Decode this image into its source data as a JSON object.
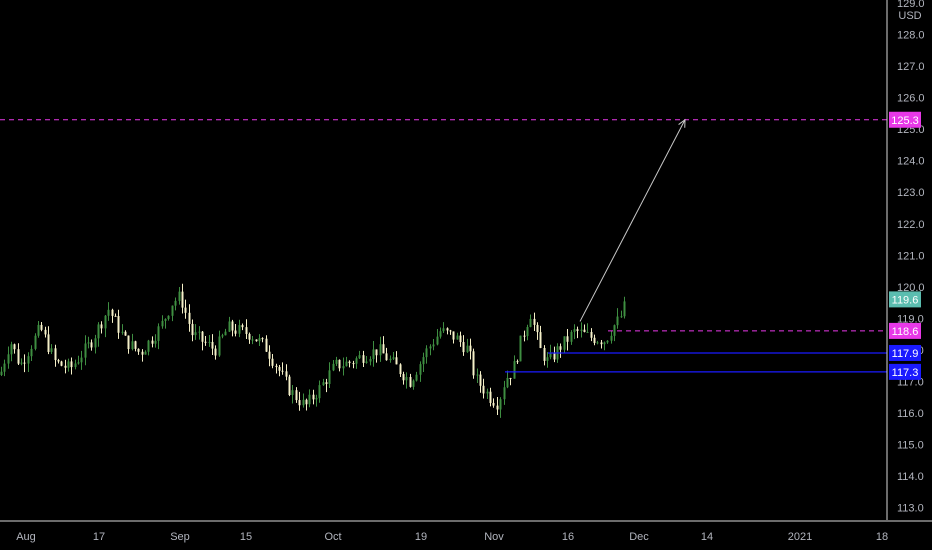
{
  "colors": {
    "background": "#000000",
    "axis_text": "#b2b5be",
    "axis_line": "#ffffff",
    "candle_up": "#3e8e41",
    "candle_down": "#f5f0c8",
    "target_line": "#e838e8",
    "support_line": "#1a1aff",
    "arrow": "#c9c9c9",
    "last_price_badge": "#5bbdb0"
  },
  "chart_data": {
    "type": "candlestick",
    "title": "",
    "xlabel": "",
    "ylabel": "",
    "currency": "USD",
    "ylim": [
      112.6,
      129.1
    ],
    "y_ticks": [
      113.0,
      114.0,
      115.0,
      116.0,
      117.0,
      118.0,
      119.0,
      120.0,
      121.0,
      122.0,
      123.0,
      124.0,
      125.0,
      126.0,
      127.0,
      128.0,
      129.0
    ],
    "x_tick_labels": [
      "Aug",
      "17",
      "Sep",
      "15",
      "Oct",
      "19",
      "Nov",
      "16",
      "Dec",
      "14",
      "2021",
      "18"
    ],
    "path": [
      [
        0,
        117.2
      ],
      [
        10,
        118.3
      ],
      [
        20,
        117.5
      ],
      [
        40,
        118.7
      ],
      [
        55,
        117.6
      ],
      [
        70,
        117.4
      ],
      [
        90,
        118.2
      ],
      [
        108,
        119.3
      ],
      [
        125,
        118.3
      ],
      [
        140,
        117.9
      ],
      [
        160,
        118.7
      ],
      [
        172,
        119.5
      ],
      [
        180,
        119.7
      ],
      [
        192,
        118.5
      ],
      [
        215,
        118.0
      ],
      [
        228,
        118.7
      ],
      [
        250,
        118.5
      ],
      [
        265,
        118.1
      ],
      [
        278,
        117.4
      ],
      [
        290,
        116.7
      ],
      [
        305,
        116.2
      ],
      [
        320,
        116.8
      ],
      [
        335,
        117.5
      ],
      [
        350,
        117.6
      ],
      [
        362,
        117.8
      ],
      [
        378,
        118.0
      ],
      [
        395,
        117.5
      ],
      [
        410,
        117.0
      ],
      [
        425,
        117.9
      ],
      [
        440,
        118.6
      ],
      [
        455,
        118.4
      ],
      [
        468,
        118.0
      ],
      [
        475,
        117.1
      ],
      [
        490,
        116.5
      ],
      [
        498,
        116.3
      ],
      [
        505,
        117.1
      ],
      [
        512,
        117.3
      ],
      [
        520,
        118.2
      ],
      [
        530,
        119.2
      ],
      [
        540,
        118.0
      ],
      [
        548,
        117.6
      ],
      [
        560,
        118.1
      ],
      [
        575,
        118.6
      ],
      [
        590,
        118.4
      ],
      [
        605,
        118.3
      ],
      [
        612,
        118.7
      ],
      [
        620,
        119.0
      ],
      [
        627,
        119.6
      ]
    ],
    "target_level": {
      "value": 125.3,
      "label": "125.3"
    },
    "last_price": {
      "value": 119.6,
      "label": "119.6"
    },
    "pivot_level": {
      "value": 118.6,
      "label": "118.6"
    },
    "support_levels": [
      {
        "value": 117.9,
        "label": "117.9"
      },
      {
        "value": 117.3,
        "label": "117.3"
      }
    ],
    "projection_arrow": {
      "from": [
        580,
        118.9
      ],
      "to": [
        685,
        125.3
      ]
    }
  }
}
